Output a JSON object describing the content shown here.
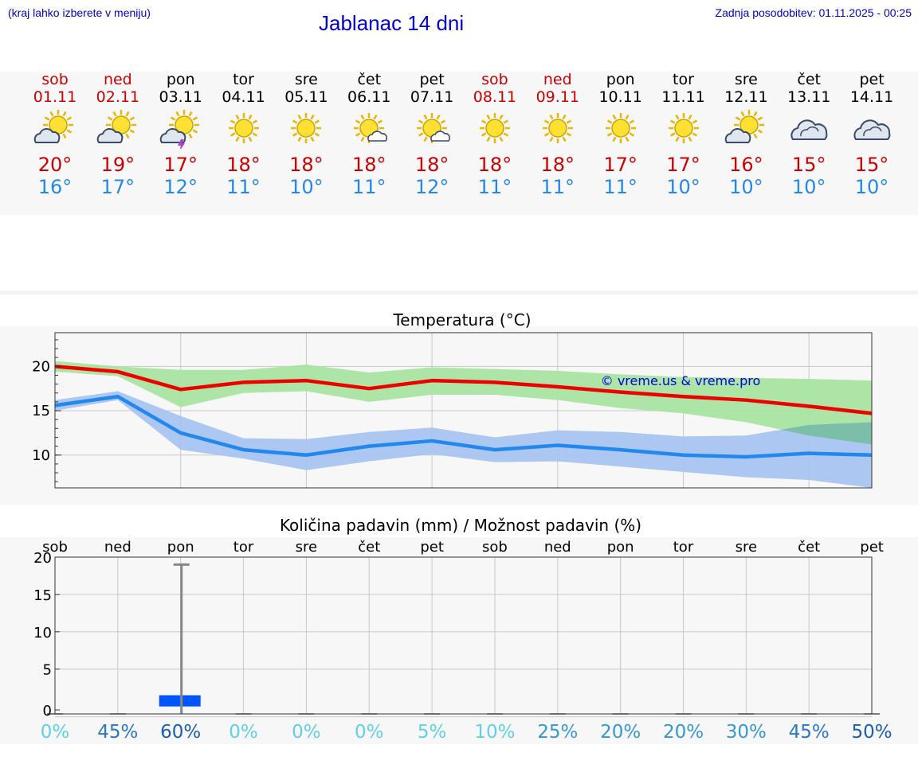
{
  "header": {
    "left_note": "(kraj lahko izberete v meniju)",
    "title": "Jablanac 14 dni",
    "updated": "Zadnja posodobitev: 01.11.2025 - 00:25"
  },
  "days": [
    {
      "name": "sob",
      "date": "01.11",
      "weekend": true,
      "icon": "sun-cloud-icon",
      "max": "20°",
      "min": "16°"
    },
    {
      "name": "ned",
      "date": "02.11",
      "weekend": true,
      "icon": "sun-cloud-icon",
      "max": "19°",
      "min": "17°"
    },
    {
      "name": "pon",
      "date": "03.11",
      "weekend": false,
      "icon": "sun-storm-icon",
      "max": "17°",
      "min": "12°"
    },
    {
      "name": "tor",
      "date": "04.11",
      "weekend": false,
      "icon": "sun-icon",
      "max": "18°",
      "min": "11°"
    },
    {
      "name": "sre",
      "date": "05.11",
      "weekend": false,
      "icon": "sun-icon",
      "max": "18°",
      "min": "10°"
    },
    {
      "name": "čet",
      "date": "06.11",
      "weekend": false,
      "icon": "sun-small-cloud-icon",
      "max": "18°",
      "min": "11°"
    },
    {
      "name": "pet",
      "date": "07.11",
      "weekend": false,
      "icon": "sun-small-cloud-icon",
      "max": "18°",
      "min": "12°"
    },
    {
      "name": "sob",
      "date": "08.11",
      "weekend": true,
      "icon": "sun-icon",
      "max": "18°",
      "min": "11°"
    },
    {
      "name": "ned",
      "date": "09.11",
      "weekend": true,
      "icon": "sun-icon",
      "max": "18°",
      "min": "11°"
    },
    {
      "name": "pon",
      "date": "10.11",
      "weekend": false,
      "icon": "sun-icon",
      "max": "17°",
      "min": "11°"
    },
    {
      "name": "tor",
      "date": "11.11",
      "weekend": false,
      "icon": "sun-icon",
      "max": "17°",
      "min": "10°"
    },
    {
      "name": "sre",
      "date": "12.11",
      "weekend": false,
      "icon": "sun-cloud-icon",
      "max": "16°",
      "min": "10°"
    },
    {
      "name": "čet",
      "date": "13.11",
      "weekend": false,
      "icon": "cloud-icon",
      "max": "15°",
      "min": "10°"
    },
    {
      "name": "pet",
      "date": "14.11",
      "weekend": false,
      "icon": "cloud-icon",
      "max": "15°",
      "min": "10°"
    }
  ],
  "chart_data": [
    {
      "type": "line",
      "title": "Temperatura (°C)",
      "watermark": "© vreme.us & vreme.pro",
      "ylim": [
        6.3,
        23.8
      ],
      "yticks": [
        10,
        15,
        20
      ],
      "colors": {
        "max": "#ee0000",
        "min": "#2288ee",
        "max_band": "#a8e4a0",
        "min_band": "#a8c4f0",
        "overlap_band": "#7cbfa8"
      },
      "series": [
        {
          "name": "max",
          "values": [
            20.0,
            19.4,
            17.4,
            18.2,
            18.4,
            17.5,
            18.4,
            18.2,
            17.7,
            17.1,
            16.6,
            16.2,
            15.5,
            14.7
          ]
        },
        {
          "name": "max_upper",
          "values": [
            20.6,
            20.0,
            19.6,
            19.6,
            20.2,
            19.3,
            19.9,
            19.7,
            19.5,
            19.1,
            18.8,
            18.7,
            18.6,
            18.4
          ]
        },
        {
          "name": "max_lower",
          "values": [
            19.4,
            18.9,
            15.4,
            17.0,
            17.2,
            16.0,
            16.8,
            16.8,
            16.2,
            15.3,
            14.7,
            13.7,
            12.2,
            11.2
          ]
        },
        {
          "name": "min",
          "values": [
            15.6,
            16.6,
            12.5,
            10.6,
            10.0,
            11.0,
            11.6,
            10.6,
            11.1,
            10.6,
            10.0,
            9.8,
            10.2,
            10.0
          ]
        },
        {
          "name": "min_upper",
          "values": [
            16.2,
            17.2,
            14.4,
            11.9,
            11.8,
            12.6,
            13.1,
            12.0,
            12.8,
            12.6,
            12.1,
            12.2,
            13.4,
            13.7
          ]
        },
        {
          "name": "min_lower",
          "values": [
            15.0,
            16.2,
            10.6,
            9.6,
            8.3,
            9.3,
            10.1,
            9.2,
            9.3,
            8.7,
            8.1,
            7.5,
            7.2,
            6.3
          ]
        }
      ]
    },
    {
      "type": "bar",
      "title": "Količina padavin (mm) / Možnost padavin (%)",
      "categories": [
        "sob",
        "ned",
        "pon",
        "tor",
        "sre",
        "čet",
        "pet",
        "sob",
        "ned",
        "pon",
        "tor",
        "sre",
        "čet",
        "pet"
      ],
      "ylim": [
        -1,
        20
      ],
      "yticks": [
        0,
        5,
        10,
        15,
        20
      ],
      "series": [
        {
          "name": "precipitation_mm",
          "values": [
            0,
            0,
            1.5,
            0,
            0,
            0,
            0,
            0,
            0,
            0,
            0,
            0,
            0,
            0
          ]
        },
        {
          "name": "precipitation_max_mm",
          "values": [
            0,
            0,
            19,
            0,
            0,
            0,
            0,
            0,
            0,
            0,
            0,
            0,
            0,
            0
          ]
        }
      ],
      "probabilities": [
        "0%",
        "45%",
        "60%",
        "0%",
        "0%",
        "0%",
        "5%",
        "10%",
        "25%",
        "20%",
        "20%",
        "30%",
        "45%",
        "50%"
      ],
      "probability_values": [
        0,
        45,
        60,
        0,
        0,
        0,
        5,
        10,
        25,
        20,
        20,
        30,
        45,
        50
      ],
      "colors": {
        "bar": "#0055ff",
        "range": "#888888"
      }
    }
  ]
}
